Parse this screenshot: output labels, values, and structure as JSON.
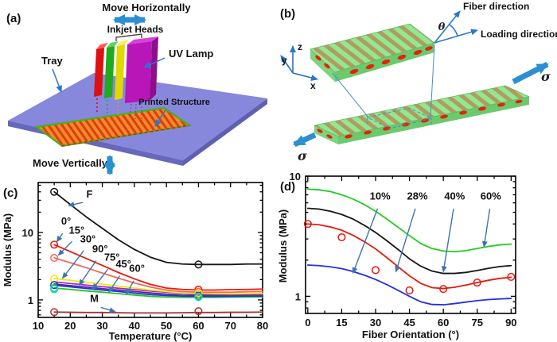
{
  "figure": {
    "panel_a": {
      "tag": "(a)",
      "labels": {
        "move_horizontally": "Move Horizontally",
        "inkjet_heads": "Inkjet Heads",
        "uv_lamp": "UV Lamp",
        "tray": "Tray",
        "printed_structure": "Printed Structure",
        "move_vertically": "Move Vertically"
      }
    },
    "panel_b": {
      "tag": "(b)",
      "labels": {
        "fiber_direction": "Fiber direction",
        "loading_direction": "Loading direction",
        "theta": "θ",
        "sigma_left": "σ",
        "sigma_right": "σ",
        "axis_x": "x",
        "axis_y": "y",
        "axis_z": "z"
      }
    },
    "panel_c": {
      "tag": "(c)"
    },
    "panel_d": {
      "tag": "(d)"
    }
  },
  "colors": {
    "arrow_blue": "#2b8fd2",
    "thin_arrow_blue": "#2b77c9",
    "annotation_arrow": "#3e74ae",
    "tray": "#8787dc",
    "tray_side": "#6767bb",
    "printed_structure": "#ef8c28",
    "printed_stripe": "#e03c10",
    "structure_border": "#3db520",
    "bar_green": "#90e890",
    "fiber_tan": "#b39a60",
    "fiber_end_red": "#e8200c",
    "head_red": "#dd1111",
    "head_green": "#1faa1f",
    "head_yellow": "#e0d800",
    "uv_lamp_magenta": "#b816b8"
  },
  "chart_data": [
    {
      "id": "c",
      "type": "line",
      "title": "",
      "xlabel": "Temperature (°C)",
      "ylabel": "Modulus (MPa)",
      "xlim": [
        10,
        80
      ],
      "xticks": [
        10,
        20,
        30,
        40,
        50,
        60,
        70,
        80
      ],
      "yscale": "log",
      "ylim": [
        0.55,
        55
      ],
      "yticks": [
        1,
        10
      ],
      "grid": false,
      "legend": "none (inline annotated labels with arrows)",
      "x": [
        15,
        20,
        25,
        30,
        35,
        40,
        45,
        50,
        55,
        60,
        65,
        70,
        75,
        80
      ],
      "series": [
        {
          "name": "M",
          "color": "#a03434",
          "values": [
            0.66,
            0.655,
            0.65,
            0.65,
            0.645,
            0.64,
            0.64,
            0.64,
            0.645,
            0.65,
            0.65,
            0.655,
            0.655,
            0.66
          ]
        },
        {
          "name": "60°",
          "color": "#1ec81e",
          "values": [
            1.5,
            1.43,
            1.36,
            1.3,
            1.24,
            1.18,
            1.13,
            1.1,
            1.09,
            1.09,
            1.09,
            1.1,
            1.1,
            1.11
          ]
        },
        {
          "name": "45°",
          "color": "#2430e0",
          "values": [
            1.65,
            1.56,
            1.48,
            1.4,
            1.33,
            1.26,
            1.2,
            1.16,
            1.14,
            1.13,
            1.13,
            1.13,
            1.14,
            1.14
          ]
        },
        {
          "name": "75°",
          "color": "#5c2d91",
          "values": [
            1.72,
            1.63,
            1.55,
            1.47,
            1.4,
            1.33,
            1.27,
            1.22,
            1.19,
            1.18,
            1.17,
            1.17,
            1.17,
            1.17
          ]
        },
        {
          "name": "90°",
          "color": "#a22ccc",
          "values": [
            1.85,
            1.75,
            1.66,
            1.57,
            1.49,
            1.42,
            1.35,
            1.3,
            1.27,
            1.25,
            1.23,
            1.22,
            1.22,
            1.22
          ]
        },
        {
          "name": "30°",
          "color": "#f0e80c",
          "values": [
            2.08,
            1.95,
            1.83,
            1.71,
            1.6,
            1.5,
            1.4,
            1.33,
            1.28,
            1.26,
            1.24,
            1.23,
            1.24,
            1.25
          ]
        },
        {
          "name": "15°",
          "color": "#f0695f",
          "values": [
            4.2,
            3.55,
            3.0,
            2.5,
            2.1,
            1.78,
            1.55,
            1.4,
            1.33,
            1.3,
            1.3,
            1.3,
            1.32,
            1.33
          ]
        },
        {
          "name": "0°",
          "color": "#e8190c",
          "values": [
            6.6,
            5.2,
            4.1,
            3.25,
            2.55,
            2.05,
            1.7,
            1.5,
            1.43,
            1.4,
            1.4,
            1.42,
            1.43,
            1.45
          ]
        },
        {
          "name": "F",
          "color": "#161616",
          "values": [
            40,
            26,
            17,
            11.5,
            7.8,
            5.6,
            4.3,
            3.6,
            3.4,
            3.35,
            3.35,
            3.35,
            3.4,
            3.4
          ]
        }
      ],
      "markers": [
        {
          "color": "#161616",
          "points": [
            [
              15,
              40
            ],
            [
              60,
              3.35
            ]
          ]
        },
        {
          "color": "#e8190c",
          "points": [
            [
              15,
              6.6
            ],
            [
              60,
              1.42
            ]
          ]
        },
        {
          "color": "#f0695f",
          "points": [
            [
              15,
              4.2
            ],
            [
              60,
              1.32
            ]
          ]
        },
        {
          "color": "#f0e80c",
          "points": [
            [
              15,
              2.05
            ],
            [
              60,
              1.26
            ]
          ]
        },
        {
          "color": "#2430e0",
          "points": [
            [
              15,
              1.66
            ],
            [
              60,
              1.14
            ]
          ]
        },
        {
          "color": "#1ec81e",
          "points": [
            [
              15,
              1.5
            ],
            [
              60,
              1.12
            ]
          ]
        },
        {
          "color": "#10d8d8",
          "points": [
            [
              15,
              1.44
            ],
            [
              60,
              1.1
            ]
          ]
        },
        {
          "color": "#a03434",
          "points": [
            [
              15,
              0.66
            ],
            [
              60,
              0.68
            ]
          ]
        }
      ],
      "annotations": [
        {
          "text": "F",
          "x": 26,
          "y": 33,
          "tx": 19.5,
          "ty": 25
        },
        {
          "text": "0°",
          "x": 18.7,
          "y": 13,
          "tx": 15.8,
          "ty": 7.3
        },
        {
          "text": "15°",
          "x": 22,
          "y": 9.6,
          "tx": 16.3,
          "ty": 4.6
        },
        {
          "text": "30°",
          "x": 25.5,
          "y": 7.1,
          "tx": 17.6,
          "ty": 2.1
        },
        {
          "text": "90°",
          "x": 29.3,
          "y": 5.1,
          "tx": 22.8,
          "ty": 1.66
        },
        {
          "text": "75°",
          "x": 33,
          "y": 3.8,
          "tx": 27,
          "ty": 1.44
        },
        {
          "text": "45°",
          "x": 36.6,
          "y": 3.05,
          "tx": 32,
          "ty": 1.3
        },
        {
          "text": "60°",
          "x": 40.8,
          "y": 2.6,
          "tx": 37.5,
          "ty": 1.22
        },
        {
          "text": "M",
          "x": 27.5,
          "y": 0.93,
          "tx": 34,
          "ty": 0.67
        }
      ]
    },
    {
      "id": "d",
      "type": "line",
      "title": "",
      "xlabel": "Fiber Orientation (°)",
      "ylabel": "Modulus (MPa)",
      "xlim": [
        -1,
        92
      ],
      "xticks": [
        0,
        15,
        30,
        45,
        60,
        75,
        90
      ],
      "yscale": "log",
      "ylim": [
        0.72,
        10
      ],
      "yticks": [
        1,
        10
      ],
      "grid": false,
      "legend": "none (inline annotated % labels with arrows)",
      "x": [
        0,
        5,
        10,
        15,
        20,
        25,
        30,
        35,
        40,
        45,
        50,
        55,
        60,
        65,
        70,
        75,
        80,
        85,
        90
      ],
      "series": [
        {
          "name": "10%",
          "color": "#2430e0",
          "values": [
            1.82,
            1.8,
            1.76,
            1.7,
            1.61,
            1.5,
            1.38,
            1.25,
            1.12,
            1.0,
            0.9,
            0.855,
            0.85,
            0.87,
            0.895,
            0.92,
            0.94,
            0.95,
            0.96
          ]
        },
        {
          "name": "28%",
          "color": "#e8190c",
          "values": [
            4.0,
            3.94,
            3.78,
            3.55,
            3.22,
            2.85,
            2.48,
            2.1,
            1.76,
            1.48,
            1.28,
            1.18,
            1.16,
            1.19,
            1.24,
            1.3,
            1.36,
            1.41,
            1.44
          ]
        },
        {
          "name": "40%",
          "color": "#161616",
          "values": [
            5.4,
            5.32,
            5.1,
            4.8,
            4.4,
            3.9,
            3.4,
            2.9,
            2.45,
            2.05,
            1.78,
            1.62,
            1.55,
            1.55,
            1.58,
            1.64,
            1.71,
            1.77,
            1.8
          ]
        },
        {
          "name": "60%",
          "color": "#22cc22",
          "values": [
            7.8,
            7.7,
            7.45,
            7.0,
            6.45,
            5.8,
            5.1,
            4.4,
            3.75,
            3.2,
            2.75,
            2.5,
            2.38,
            2.35,
            2.4,
            2.5,
            2.6,
            2.68,
            2.72
          ]
        }
      ],
      "markers": [
        {
          "color": "#e8190c",
          "points": [
            [
              0,
              4.0
            ],
            [
              15,
              3.1
            ],
            [
              30,
              1.65
            ],
            [
              45,
              1.12
            ],
            [
              60,
              1.15
            ],
            [
              75,
              1.3
            ],
            [
              90,
              1.45
            ]
          ]
        }
      ],
      "annotations": [
        {
          "text": "10%",
          "x": 32,
          "y": 6.4,
          "tx": 20,
          "ty": 1.56
        },
        {
          "text": "28%",
          "x": 48.5,
          "y": 6.4,
          "tx": 39,
          "ty": 1.6
        },
        {
          "text": "40%",
          "x": 65,
          "y": 6.4,
          "tx": 60,
          "ty": 1.6
        },
        {
          "text": "60%",
          "x": 81,
          "y": 6.4,
          "tx": 78,
          "ty": 2.58
        }
      ]
    }
  ]
}
